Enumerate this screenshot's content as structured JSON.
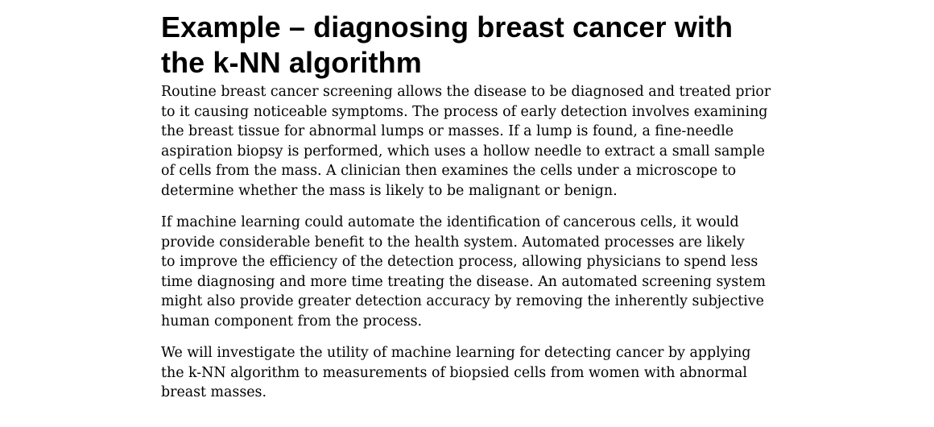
{
  "heading": {
    "lines": [
      "Example – diagnosing breast cancer with",
      "the k-NN algorithm"
    ]
  },
  "paragraphs": [
    {
      "lines": [
        "Routine breast cancer screening allows the disease to be diagnosed and treated prior",
        "to it causing noticeable symptoms. The process of early detection involves examining",
        "the breast tissue for abnormal lumps or masses. If a lump is found, a fine-needle",
        "aspiration biopsy is performed, which uses a hollow needle to extract a small sample",
        "of cells from the mass. A clinician then examines the cells under a microscope to",
        "determine whether the mass is likely to be malignant or benign."
      ]
    },
    {
      "lines": [
        "If machine learning could automate the identification of cancerous cells, it would",
        "provide considerable benefit to the health system. Automated processes are likely",
        "to improve the efficiency of the detection process, allowing physicians to spend less",
        "time diagnosing and more time treating the disease. An automated screening system",
        "might also provide greater detection accuracy by removing the inherently subjective",
        "human component from the process."
      ]
    },
    {
      "lines": [
        "We will investigate the utility of machine learning for detecting cancer by applying",
        "the k-NN algorithm to measurements of biopsied cells from women with abnormal",
        "breast masses."
      ]
    }
  ]
}
